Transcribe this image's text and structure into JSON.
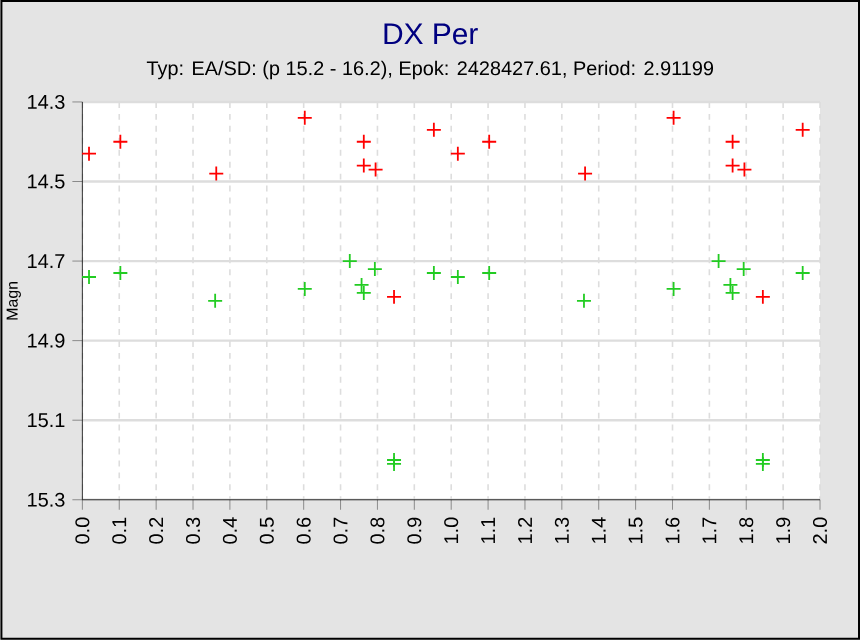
{
  "chart_data": {
    "type": "scatter",
    "title": "DX Per",
    "subtitle": "Typ: EA/SD: (p 15.2 - 16.2), Epok: 2428427.61, Period: 2.91199",
    "ylabel": "Magn",
    "xlim": [
      0,
      2
    ],
    "ylim": [
      15.3,
      14.3
    ],
    "xticks": [
      {
        "value": 0,
        "label": "0.0"
      },
      {
        "value": 0.1,
        "label": "0.1"
      },
      {
        "value": 0.2,
        "label": "0.2"
      },
      {
        "value": 0.3,
        "label": "0.3"
      },
      {
        "value": 0.4,
        "label": "0.4"
      },
      {
        "value": 0.5,
        "label": "0.5"
      },
      {
        "value": 0.6,
        "label": "0.6"
      },
      {
        "value": 0.7,
        "label": "0.7"
      },
      {
        "value": 0.8,
        "label": "0.8"
      },
      {
        "value": 0.9,
        "label": "0.9"
      },
      {
        "value": 1,
        "label": "1.0"
      },
      {
        "value": 1.1,
        "label": "1.1"
      },
      {
        "value": 1.2,
        "label": "1.2"
      },
      {
        "value": 1.3,
        "label": "1.3"
      },
      {
        "value": 1.4,
        "label": "1.4"
      },
      {
        "value": 1.5,
        "label": "1.5"
      },
      {
        "value": 1.6,
        "label": "1.6"
      },
      {
        "value": 1.7,
        "label": "1.7"
      },
      {
        "value": 1.8,
        "label": "1.8"
      },
      {
        "value": 1.9,
        "label": "1.9"
      },
      {
        "value": 2,
        "label": "2.0"
      }
    ],
    "yticks": [
      14.3,
      14.5,
      14.7,
      14.9,
      15.1,
      15.3
    ],
    "grid": true,
    "marker": "cross",
    "series": [
      {
        "color": "#ff0000",
        "x": [
          0.018,
          0.103,
          0.363,
          0.603,
          0.763,
          0.763,
          0.795,
          0.845,
          0.953,
          1.018,
          1.103,
          1.363,
          1.603,
          1.763,
          1.763,
          1.795,
          1.845,
          1.953
        ],
        "values": [
          14.43,
          14.4,
          14.48,
          14.34,
          14.4,
          14.46,
          14.47,
          14.79,
          14.37,
          14.43,
          14.4,
          14.48,
          14.34,
          14.4,
          14.46,
          14.47,
          14.79,
          14.37
        ]
      },
      {
        "color": "#22cc22",
        "x": [
          0.018,
          0.103,
          0.36,
          0.603,
          0.725,
          0.757,
          0.763,
          0.793,
          0.845,
          0.845,
          0.953,
          1.018,
          1.103,
          1.36,
          1.603,
          1.725,
          1.757,
          1.763,
          1.793,
          1.845,
          1.845,
          1.953
        ],
        "values": [
          14.74,
          14.73,
          14.8,
          14.77,
          14.7,
          14.76,
          14.78,
          14.72,
          15.2,
          15.21,
          14.73,
          14.74,
          14.73,
          14.8,
          14.77,
          14.7,
          14.76,
          14.78,
          14.72,
          15.2,
          15.21,
          14.73
        ]
      }
    ]
  }
}
